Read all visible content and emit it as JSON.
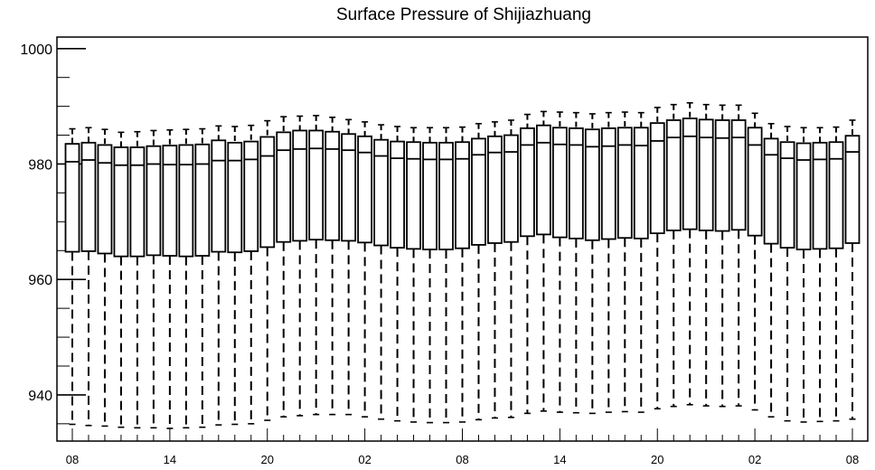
{
  "chart_data": {
    "type": "boxplot",
    "title": "Surface Pressure of Shijiazhuang",
    "xlabel": "",
    "ylabel": "",
    "ylim": [
      932,
      1002
    ],
    "yticks": [
      940,
      960,
      980,
      1000
    ],
    "xtick_labels": [
      "08",
      "14",
      "20",
      "02",
      "08",
      "14",
      "20",
      "02",
      "08"
    ],
    "xtick_positions": [
      0,
      6,
      12,
      18,
      24,
      30,
      36,
      42,
      48
    ],
    "grid": false,
    "legend": "none",
    "series": [
      {
        "x": 0,
        "whisker_low": 934.9,
        "q1": 964.8,
        "median": 980.4,
        "q3": 983.5,
        "whisker_high": 986.1
      },
      {
        "x": 1,
        "whisker_low": 934.7,
        "q1": 964.9,
        "median": 980.7,
        "q3": 983.7,
        "whisker_high": 986.3
      },
      {
        "x": 2,
        "whisker_low": 934.6,
        "q1": 964.5,
        "median": 980.2,
        "q3": 983.3,
        "whisker_high": 986.0
      },
      {
        "x": 3,
        "whisker_low": 934.4,
        "q1": 964.0,
        "median": 979.8,
        "q3": 982.9,
        "whisker_high": 985.5
      },
      {
        "x": 4,
        "whisker_low": 934.3,
        "q1": 964.0,
        "median": 979.8,
        "q3": 982.9,
        "whisker_high": 985.6
      },
      {
        "x": 5,
        "whisker_low": 934.3,
        "q1": 964.2,
        "median": 980.0,
        "q3": 983.1,
        "whisker_high": 985.8
      },
      {
        "x": 6,
        "whisker_low": 934.2,
        "q1": 964.1,
        "median": 979.9,
        "q3": 983.2,
        "whisker_high": 985.9
      },
      {
        "x": 7,
        "whisker_low": 934.3,
        "q1": 964.0,
        "median": 979.9,
        "q3": 983.3,
        "whisker_high": 986.0
      },
      {
        "x": 8,
        "whisker_low": 934.4,
        "q1": 964.1,
        "median": 980.0,
        "q3": 983.4,
        "whisker_high": 986.1
      },
      {
        "x": 9,
        "whisker_low": 934.8,
        "q1": 964.8,
        "median": 980.6,
        "q3": 984.1,
        "whisker_high": 986.6
      },
      {
        "x": 10,
        "whisker_low": 934.9,
        "q1": 964.7,
        "median": 980.6,
        "q3": 983.7,
        "whisker_high": 986.5
      },
      {
        "x": 11,
        "whisker_low": 935.0,
        "q1": 964.9,
        "median": 980.8,
        "q3": 983.9,
        "whisker_high": 986.7
      },
      {
        "x": 12,
        "whisker_low": 935.6,
        "q1": 965.6,
        "median": 981.4,
        "q3": 984.7,
        "whisker_high": 987.5
      },
      {
        "x": 13,
        "whisker_low": 936.2,
        "q1": 966.5,
        "median": 982.4,
        "q3": 985.5,
        "whisker_high": 988.2
      },
      {
        "x": 14,
        "whisker_low": 936.4,
        "q1": 966.7,
        "median": 982.6,
        "q3": 985.8,
        "whisker_high": 988.3
      },
      {
        "x": 15,
        "whisker_low": 936.6,
        "q1": 966.9,
        "median": 982.7,
        "q3": 985.8,
        "whisker_high": 988.4
      },
      {
        "x": 16,
        "whisker_low": 936.6,
        "q1": 966.8,
        "median": 982.6,
        "q3": 985.6,
        "whisker_high": 988.1
      },
      {
        "x": 17,
        "whisker_low": 936.6,
        "q1": 966.7,
        "median": 982.4,
        "q3": 985.2,
        "whisker_high": 987.7
      },
      {
        "x": 18,
        "whisker_low": 936.2,
        "q1": 966.4,
        "median": 982.0,
        "q3": 984.8,
        "whisker_high": 987.3
      },
      {
        "x": 19,
        "whisker_low": 935.8,
        "q1": 965.9,
        "median": 981.4,
        "q3": 984.2,
        "whisker_high": 986.8
      },
      {
        "x": 20,
        "whisker_low": 935.5,
        "q1": 965.5,
        "median": 981.0,
        "q3": 983.9,
        "whisker_high": 986.5
      },
      {
        "x": 21,
        "whisker_low": 935.3,
        "q1": 965.3,
        "median": 980.9,
        "q3": 983.8,
        "whisker_high": 986.3
      },
      {
        "x": 22,
        "whisker_low": 935.2,
        "q1": 965.2,
        "median": 980.8,
        "q3": 983.7,
        "whisker_high": 986.3
      },
      {
        "x": 23,
        "whisker_low": 935.2,
        "q1": 965.2,
        "median": 980.8,
        "q3": 983.7,
        "whisker_high": 986.3
      },
      {
        "x": 24,
        "whisker_low": 935.3,
        "q1": 965.4,
        "median": 980.9,
        "q3": 983.8,
        "whisker_high": 986.4
      },
      {
        "x": 25,
        "whisker_low": 935.7,
        "q1": 966.0,
        "median": 981.6,
        "q3": 984.4,
        "whisker_high": 987.0
      },
      {
        "x": 26,
        "whisker_low": 936.0,
        "q1": 966.3,
        "median": 982.0,
        "q3": 984.8,
        "whisker_high": 987.3
      },
      {
        "x": 27,
        "whisker_low": 936.1,
        "q1": 966.5,
        "median": 982.1,
        "q3": 985.0,
        "whisker_high": 987.6
      },
      {
        "x": 28,
        "whisker_low": 936.8,
        "q1": 967.5,
        "median": 983.3,
        "q3": 986.2,
        "whisker_high": 988.6
      },
      {
        "x": 29,
        "whisker_low": 937.2,
        "q1": 967.8,
        "median": 983.7,
        "q3": 986.7,
        "whisker_high": 989.1
      },
      {
        "x": 30,
        "whisker_low": 937.0,
        "q1": 967.3,
        "median": 983.4,
        "q3": 986.3,
        "whisker_high": 989.0
      },
      {
        "x": 31,
        "whisker_low": 936.9,
        "q1": 967.1,
        "median": 983.3,
        "q3": 986.2,
        "whisker_high": 988.9
      },
      {
        "x": 32,
        "whisker_low": 936.8,
        "q1": 966.8,
        "median": 983.0,
        "q3": 986.0,
        "whisker_high": 988.7
      },
      {
        "x": 33,
        "whisker_low": 937.0,
        "q1": 967.0,
        "median": 983.1,
        "q3": 986.2,
        "whisker_high": 988.9
      },
      {
        "x": 34,
        "whisker_low": 937.1,
        "q1": 967.2,
        "median": 983.3,
        "q3": 986.3,
        "whisker_high": 989.0
      },
      {
        "x": 35,
        "whisker_low": 937.0,
        "q1": 967.1,
        "median": 983.2,
        "q3": 986.3,
        "whisker_high": 988.9
      },
      {
        "x": 36,
        "whisker_low": 937.6,
        "q1": 968.0,
        "median": 984.0,
        "q3": 987.1,
        "whisker_high": 989.8
      },
      {
        "x": 37,
        "whisker_low": 938.0,
        "q1": 968.5,
        "median": 984.6,
        "q3": 987.6,
        "whisker_high": 990.3
      },
      {
        "x": 38,
        "whisker_low": 938.3,
        "q1": 968.7,
        "median": 984.8,
        "q3": 987.9,
        "whisker_high": 990.6
      },
      {
        "x": 39,
        "whisker_low": 938.1,
        "q1": 968.5,
        "median": 984.6,
        "q3": 987.7,
        "whisker_high": 990.3
      },
      {
        "x": 40,
        "whisker_low": 938.0,
        "q1": 968.4,
        "median": 984.5,
        "q3": 987.6,
        "whisker_high": 990.2
      },
      {
        "x": 41,
        "whisker_low": 938.1,
        "q1": 968.6,
        "median": 984.6,
        "q3": 987.6,
        "whisker_high": 990.2
      },
      {
        "x": 42,
        "whisker_low": 937.4,
        "q1": 967.6,
        "median": 983.3,
        "q3": 986.3,
        "whisker_high": 988.8
      },
      {
        "x": 43,
        "whisker_low": 936.2,
        "q1": 966.2,
        "median": 981.6,
        "q3": 984.4,
        "whisker_high": 987.0
      },
      {
        "x": 44,
        "whisker_low": 935.5,
        "q1": 965.5,
        "median": 981.0,
        "q3": 983.8,
        "whisker_high": 986.5
      },
      {
        "x": 45,
        "whisker_low": 935.3,
        "q1": 965.2,
        "median": 980.7,
        "q3": 983.6,
        "whisker_high": 986.3
      },
      {
        "x": 46,
        "whisker_low": 935.4,
        "q1": 965.3,
        "median": 980.8,
        "q3": 983.7,
        "whisker_high": 986.3
      },
      {
        "x": 47,
        "whisker_low": 935.5,
        "q1": 965.4,
        "median": 980.9,
        "q3": 983.8,
        "whisker_high": 986.4
      },
      {
        "x": 48,
        "whisker_low": 935.8,
        "q1": 966.3,
        "median": 982.1,
        "q3": 984.9,
        "whisker_high": 987.6
      }
    ]
  }
}
